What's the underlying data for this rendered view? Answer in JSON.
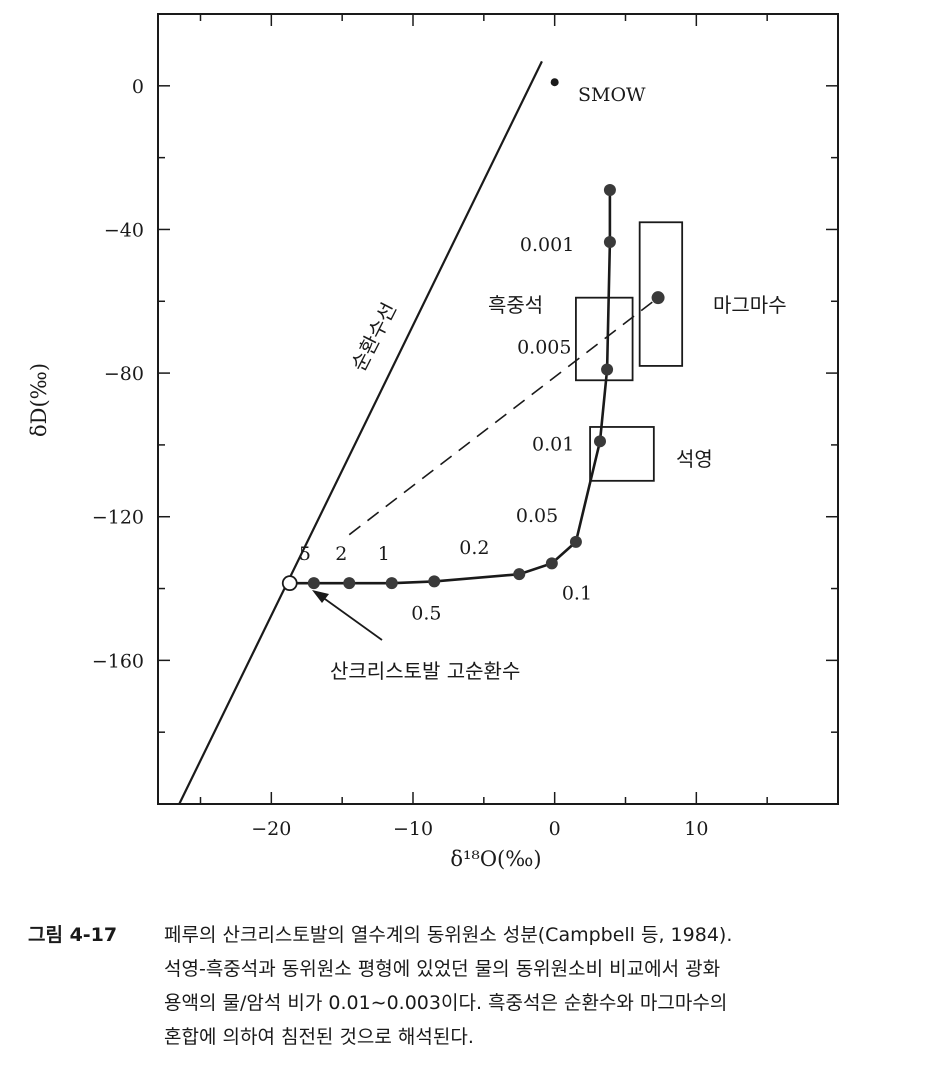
{
  "chart_data": {
    "type": "scatter",
    "xlabel": "δ¹⁸O(‰)",
    "ylabel": "δD(‰)",
    "xlim": [
      -28,
      20
    ],
    "ylim": [
      -200,
      20
    ],
    "x_ticks": [
      -20,
      -10,
      0,
      10
    ],
    "y_ticks": [
      0,
      -40,
      -80,
      -120,
      -160
    ],
    "grid": false,
    "meteoric_water_line": {
      "label": "순환수선",
      "points": [
        [
          -26.5,
          -200
        ],
        [
          -0.9,
          6.8
        ]
      ]
    },
    "smow": {
      "label": "SMOW",
      "x": 0,
      "y": 1
    },
    "exchange_curve": {
      "points": [
        {
          "x": -17,
          "y": -138.5,
          "label": "5"
        },
        {
          "x": -14.5,
          "y": -138.5,
          "label": "2"
        },
        {
          "x": -11.5,
          "y": -138.5,
          "label": "1"
        },
        {
          "x": -8.5,
          "y": -138,
          "label": "0.5"
        },
        {
          "x": -2.5,
          "y": -136,
          "label": "0.2"
        },
        {
          "x": -0.2,
          "y": -133,
          "label": "0.1"
        },
        {
          "x": 1.5,
          "y": -127,
          "label": "0.05"
        },
        {
          "x": 3.2,
          "y": -99,
          "label": "0.01"
        },
        {
          "x": 3.7,
          "y": -79,
          "label": "0.005"
        },
        {
          "x": 3.9,
          "y": -43.5,
          "label": "0.001"
        },
        {
          "x": 3.9,
          "y": -29,
          "label": ""
        }
      ]
    },
    "initial_meteoric_water": {
      "label": "산크리스토발 고순환수",
      "x": -18.7,
      "y": -138.5
    },
    "magmatic_water": {
      "label": "마그마수",
      "x": 7.3,
      "y": -59,
      "box": {
        "x": [
          6,
          9
        ],
        "y": [
          -78,
          -38
        ]
      }
    },
    "sericite": {
      "label": "흑중석",
      "box": {
        "x": [
          1.5,
          5.5
        ],
        "y": [
          -82,
          -59
        ]
      }
    },
    "quartz": {
      "label": "석영",
      "box": {
        "x": [
          2.5,
          7
        ],
        "y": [
          -110,
          -95
        ]
      }
    },
    "mixing_line": {
      "points": [
        [
          -14.5,
          -125
        ],
        [
          7.3,
          -59
        ]
      ],
      "style": "dashed"
    },
    "colors": {
      "ink": "#1a1a1a",
      "marker": "#3a3a3a",
      "background": "#ffffff"
    }
  },
  "caption": {
    "label": "그림 4-17",
    "lines": [
      "페루의 산크리스토발의 열수계의 동위원소 성분(Campbell 등, 1984).",
      "석영-흑중석과 동위원소 평형에 있었던 물의 동위원소비 비교에서 광화",
      "용액의 물/암석 비가 0.01∼0.003이다. 흑중석은 순환수와 마그마수의",
      "혼합에 의하여 침전된 것으로 해석된다."
    ]
  }
}
